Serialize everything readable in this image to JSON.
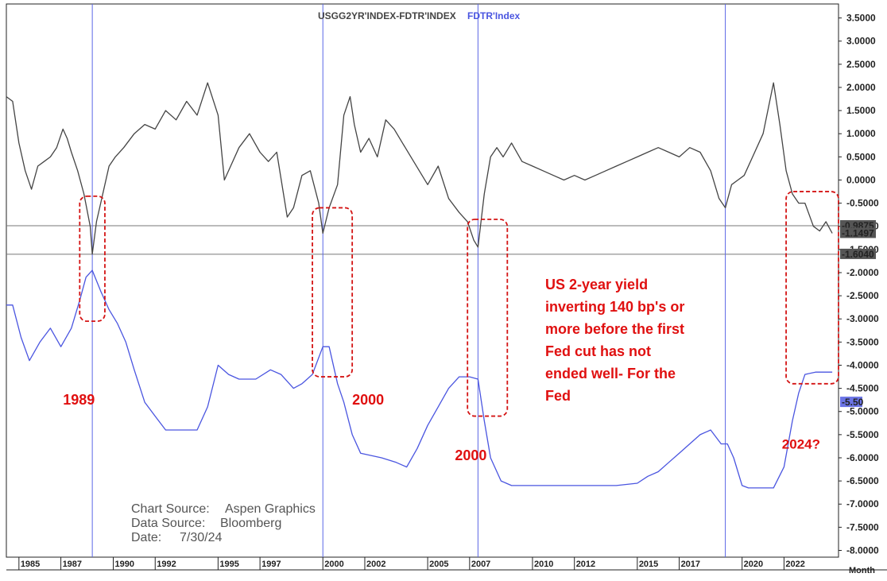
{
  "chart_data": {
    "type": "line",
    "legend": [
      {
        "name": "USGG2YR'INDEX-FDTR'INDEX",
        "color": "#444444"
      },
      {
        "name": "FDTR'Index",
        "color": "#4a55e0"
      }
    ],
    "x_ticks": [
      "1985",
      "1987",
      "1990",
      "1992",
      "1995",
      "1997",
      "2000",
      "2002",
      "2005",
      "2007",
      "2010",
      "2012",
      "2015",
      "2017",
      "2020",
      "2022"
    ],
    "x_tick_years": [
      1985.5,
      1987.5,
      1990,
      1992,
      1995,
      1997,
      2000,
      2002,
      2005,
      2007,
      2010,
      2012,
      2015,
      2017,
      2020,
      2022
    ],
    "x_axis_label": "Month",
    "xlim": [
      1984.9,
      2024.6
    ],
    "y_ticks": [
      "3.5000",
      "3.0000",
      "2.5000",
      "2.0000",
      "1.5000",
      "1.0000",
      "0.5000",
      "0.0000",
      "-0.5000",
      "-1.0000",
      "-1.5000",
      "-2.0000",
      "-2.5000",
      "-3.0000",
      "-3.5000",
      "-4.0000",
      "-4.5000",
      "-5.0000",
      "-5.5000",
      "-6.0000",
      "-6.5000",
      "-7.0000",
      "-7.5000",
      "-8.0000"
    ],
    "ylim": [
      -8.15,
      3.85
    ],
    "y_reference_lines": [
      -0.9875,
      -1.604
    ],
    "value_badges": [
      {
        "label": "-0.9875",
        "y": -0.9875
      },
      {
        "label": "-1.1497",
        "y": -1.1497
      },
      {
        "label": "-1.6040",
        "y": -1.604
      },
      {
        "label": "-5.50",
        "y": -4.8
      }
    ],
    "vertical_markers": [
      1989.0,
      2000.0,
      2007.4,
      2019.2
    ],
    "series": [
      {
        "name": "USGG2YR'INDEX-FDTR'INDEX",
        "color": "#444444",
        "x": [
          1984.9,
          1985.2,
          1985.5,
          1985.8,
          1986.1,
          1986.4,
          1986.7,
          1987.0,
          1987.3,
          1987.6,
          1987.8,
          1988.0,
          1988.3,
          1988.6,
          1988.9,
          1989.0,
          1989.2,
          1989.4,
          1989.8,
          1990.1,
          1990.5,
          1991.0,
          1991.5,
          1992.0,
          1992.5,
          1993.0,
          1993.5,
          1994.0,
          1994.5,
          1995.0,
          1995.3,
          1995.6,
          1996.0,
          1996.5,
          1997.0,
          1997.4,
          1997.8,
          1998.3,
          1998.6,
          1999.0,
          1999.4,
          1999.8,
          2000.0,
          2000.3,
          2000.7,
          2001.0,
          2001.3,
          2001.5,
          2001.8,
          2002.2,
          2002.6,
          2003.0,
          2003.4,
          2003.8,
          2004.2,
          2004.6,
          2005.0,
          2005.5,
          2006.0,
          2006.5,
          2006.9,
          2007.2,
          2007.4,
          2007.7,
          2008.0,
          2008.3,
          2008.6,
          2009.0,
          2009.5,
          2010.0,
          2010.5,
          2011.0,
          2011.5,
          2012.0,
          2012.5,
          2013.0,
          2013.5,
          2014.0,
          2014.5,
          2015.0,
          2015.5,
          2016.0,
          2016.5,
          2017.0,
          2017.5,
          2018.0,
          2018.5,
          2018.9,
          2019.2,
          2019.5,
          2019.8,
          2020.1,
          2020.5,
          2021.0,
          2021.5,
          2021.8,
          2022.1,
          2022.4,
          2022.7,
          2023.0,
          2023.4,
          2023.7,
          2024.0,
          2024.3
        ],
        "y": [
          1.8,
          1.7,
          0.8,
          0.2,
          -0.2,
          0.3,
          0.4,
          0.5,
          0.7,
          1.1,
          0.9,
          0.6,
          0.2,
          -0.3,
          -1.0,
          -1.6,
          -0.9,
          -0.5,
          0.3,
          0.5,
          0.7,
          1.0,
          1.2,
          1.1,
          1.5,
          1.3,
          1.7,
          1.4,
          2.1,
          1.4,
          0.0,
          0.3,
          0.7,
          1.0,
          0.6,
          0.4,
          0.6,
          -0.8,
          -0.6,
          0.1,
          0.2,
          -0.5,
          -1.15,
          -0.6,
          -0.1,
          1.4,
          1.8,
          1.2,
          0.6,
          0.9,
          0.5,
          1.3,
          1.1,
          0.8,
          0.5,
          0.2,
          -0.1,
          0.3,
          -0.4,
          -0.7,
          -0.9,
          -1.3,
          -1.45,
          -0.3,
          0.5,
          0.7,
          0.5,
          0.8,
          0.4,
          0.3,
          0.2,
          0.1,
          0.0,
          0.1,
          0.0,
          0.1,
          0.2,
          0.3,
          0.4,
          0.5,
          0.6,
          0.7,
          0.6,
          0.5,
          0.7,
          0.6,
          0.2,
          -0.4,
          -0.6,
          -0.1,
          0.0,
          0.1,
          0.5,
          1.0,
          2.1,
          1.2,
          0.2,
          -0.3,
          -0.5,
          -0.5,
          -1.0,
          -1.1,
          -0.9,
          -1.15
        ]
      },
      {
        "name": "FDTR'Index",
        "color": "#4a55e0",
        "x": [
          1984.9,
          1985.2,
          1985.6,
          1986.0,
          1986.5,
          1987.0,
          1987.5,
          1988.0,
          1988.4,
          1988.7,
          1989.0,
          1989.4,
          1989.8,
          1990.2,
          1990.6,
          1991.0,
          1991.5,
          1992.0,
          1992.5,
          1993.0,
          1994.0,
          1994.5,
          1995.0,
          1995.5,
          1996.0,
          1996.8,
          1997.5,
          1998.0,
          1998.6,
          1999.0,
          1999.5,
          2000.0,
          2000.3,
          2000.7,
          2001.0,
          2001.4,
          2001.8,
          2002.3,
          2002.8,
          2003.5,
          2004.0,
          2004.5,
          2005.0,
          2005.5,
          2006.0,
          2006.5,
          2007.0,
          2007.4,
          2007.7,
          2008.0,
          2008.5,
          2009.0,
          2010.0,
          2011.0,
          2012.0,
          2013.0,
          2014.0,
          2015.0,
          2015.5,
          2016.0,
          2016.5,
          2017.0,
          2017.5,
          2018.0,
          2018.5,
          2019.0,
          2019.3,
          2019.6,
          2020.0,
          2020.3,
          2021.0,
          2021.5,
          2022.0,
          2022.4,
          2022.7,
          2023.0,
          2023.5,
          2024.0,
          2024.3
        ],
        "y": [
          -2.7,
          -2.7,
          -3.4,
          -3.9,
          -3.5,
          -3.2,
          -3.6,
          -3.2,
          -2.6,
          -2.1,
          -1.95,
          -2.4,
          -2.8,
          -3.1,
          -3.5,
          -4.1,
          -4.8,
          -5.1,
          -5.4,
          -5.4,
          -5.4,
          -4.9,
          -4.0,
          -4.2,
          -4.3,
          -4.3,
          -4.1,
          -4.2,
          -4.5,
          -4.4,
          -4.2,
          -3.6,
          -3.6,
          -4.4,
          -4.8,
          -5.5,
          -5.9,
          -5.95,
          -6.0,
          -6.1,
          -6.2,
          -5.8,
          -5.3,
          -4.9,
          -4.5,
          -4.25,
          -4.25,
          -4.3,
          -5.2,
          -6.0,
          -6.5,
          -6.6,
          -6.6,
          -6.6,
          -6.6,
          -6.6,
          -6.6,
          -6.55,
          -6.4,
          -6.3,
          -6.1,
          -5.9,
          -5.7,
          -5.5,
          -5.4,
          -5.7,
          -5.7,
          -6.0,
          -6.6,
          -6.65,
          -6.65,
          -6.65,
          -6.2,
          -5.2,
          -4.6,
          -4.2,
          -4.15,
          -4.15,
          -4.15
        ]
      }
    ]
  },
  "highlight_boxes": [
    {
      "x0": 1988.4,
      "x1": 1989.6,
      "y0": -0.35,
      "y1": -3.05
    },
    {
      "x0": 1999.5,
      "x1": 2001.4,
      "y0": -0.6,
      "y1": -4.25
    },
    {
      "x0": 2006.9,
      "x1": 2008.8,
      "y0": -0.85,
      "y1": -5.1
    },
    {
      "x0": 2022.1,
      "x1": 2024.6,
      "y0": -0.25,
      "y1": -4.4
    }
  ],
  "annotations": [
    {
      "id": "label-1989",
      "text": "1989",
      "x": 1987.6,
      "y": -4.85,
      "size": 18
    },
    {
      "id": "label-2000a",
      "text": "2000",
      "x": 2001.4,
      "y": -4.85,
      "size": 18
    },
    {
      "id": "label-2000b",
      "text": "2000",
      "x": 2006.3,
      "y": -6.05,
      "size": 18
    },
    {
      "id": "label-2024",
      "text": "2024?",
      "x": 2021.9,
      "y": -5.8,
      "size": 17
    }
  ],
  "note_lines": [
    "US 2-year yield",
    "inverting 140 bp's or",
    "more before the first",
    "Fed cut has not",
    "ended well- For the",
    "Fed"
  ],
  "source_lines": [
    {
      "label": "Chart Source:",
      "value": "Aspen Graphics"
    },
    {
      "label": "Data Source:",
      "value": "Bloomberg"
    },
    {
      "label": "Date:",
      "value": "7/30/24"
    }
  ]
}
